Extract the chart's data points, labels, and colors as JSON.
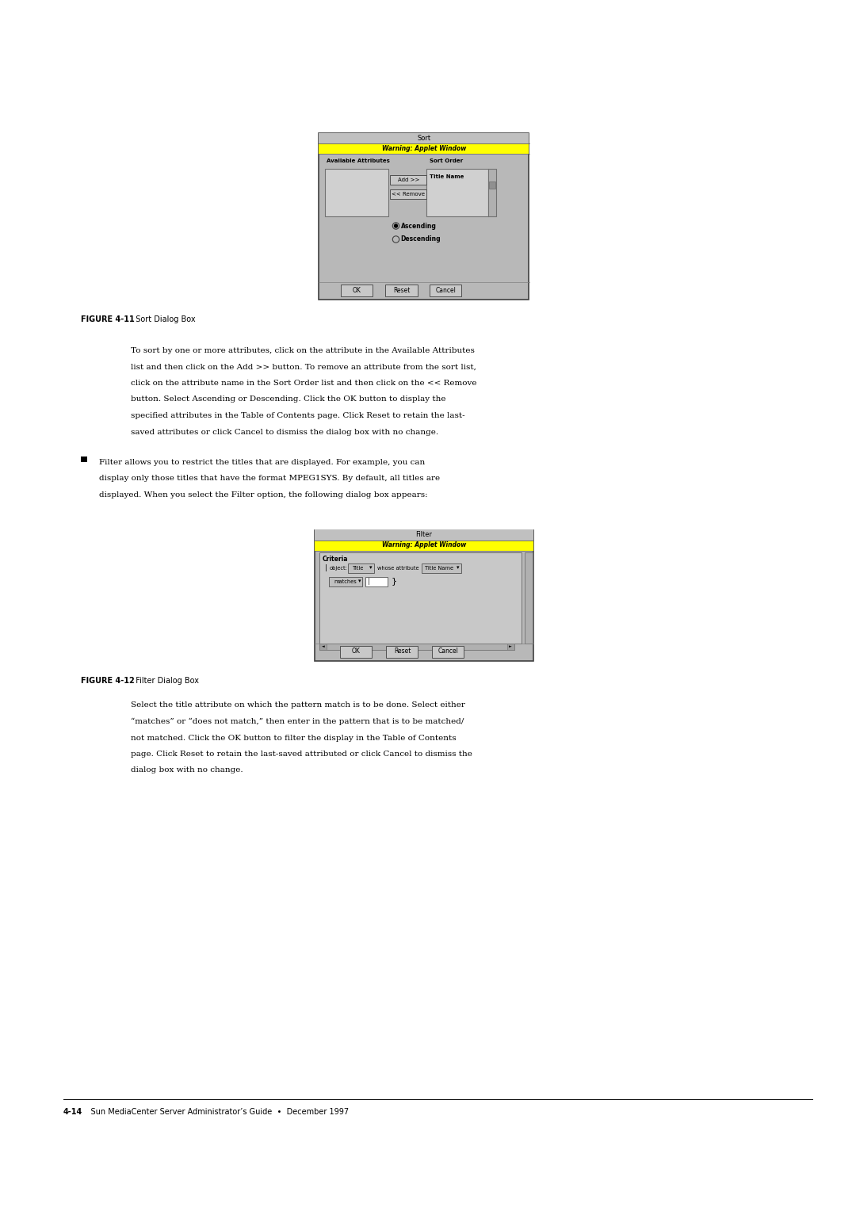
{
  "bg_color": "#ffffff",
  "page_width": 10.8,
  "page_height": 15.28,
  "sort_dialog": {
    "title": "Sort",
    "warning": "Warning: Applet Window",
    "available_label": "Available Attributes",
    "sort_order_label": "Sort Order",
    "title_name": "Title Name",
    "add_btn": "Add >>",
    "remove_btn": "<< Remove",
    "ascending": "Ascending",
    "descending": "Descending",
    "ok_btn": "OK",
    "reset_btn": "Reset",
    "cancel_btn": "Cancel"
  },
  "filter_dialog": {
    "title": "Filter",
    "warning": "Warning: Applet Window",
    "criteria_label": "Criteria",
    "object_label": "object:",
    "title_dropdown": "Title",
    "whose_attr": "whose attribute",
    "title_name_dropdown": "Title Name",
    "matches_dropdown": "matches",
    "ok_btn": "OK",
    "reset_btn": "Reset",
    "cancel_btn": "Cancel"
  },
  "figure_caption_1_bold": "FIGURE 4-11",
  "figure_caption_1_rest": "  Sort Dialog Box",
  "figure_caption_2_bold": "FIGURE 4-12",
  "figure_caption_2_rest": "  Filter Dialog Box",
  "para1_lines": [
    "To sort by one or more attributes, click on the attribute in the Available Attributes",
    "list and then click on the Add >> button. To remove an attribute from the sort list,",
    "click on the attribute name in the Sort Order list and then click on the << Remove",
    "button. Select Ascending or Descending. Click the OK button to display the",
    "specified attributes in the Table of Contents page. Click Reset to retain the last-",
    "saved attributes or click Cancel to dismiss the dialog box with no change."
  ],
  "bullet1_lines": [
    "Filter allows you to restrict the titles that are displayed. For example, you can",
    "display only those titles that have the format MPEG1SYS. By default, all titles are",
    "displayed. When you select the Filter option, the following dialog box appears:"
  ],
  "para2_lines": [
    "Select the title attribute on which the pattern match is to be done. Select either",
    "“matches” or “does not match,” then enter in the pattern that is to be matched/",
    "not matched. Click the OK button to filter the display in the Table of Contents",
    "page. Click Reset to retain the last-saved attributed or click Cancel to dismiss the",
    "dialog box with no change."
  ],
  "footer_bold": "4-14",
  "footer_rest": "    Sun MediaCenter Server Administrator’s Guide  •  December 1997",
  "dialog_bg": "#c0c0c0",
  "warning_bg": "#ffff00",
  "text_color": "#000000"
}
